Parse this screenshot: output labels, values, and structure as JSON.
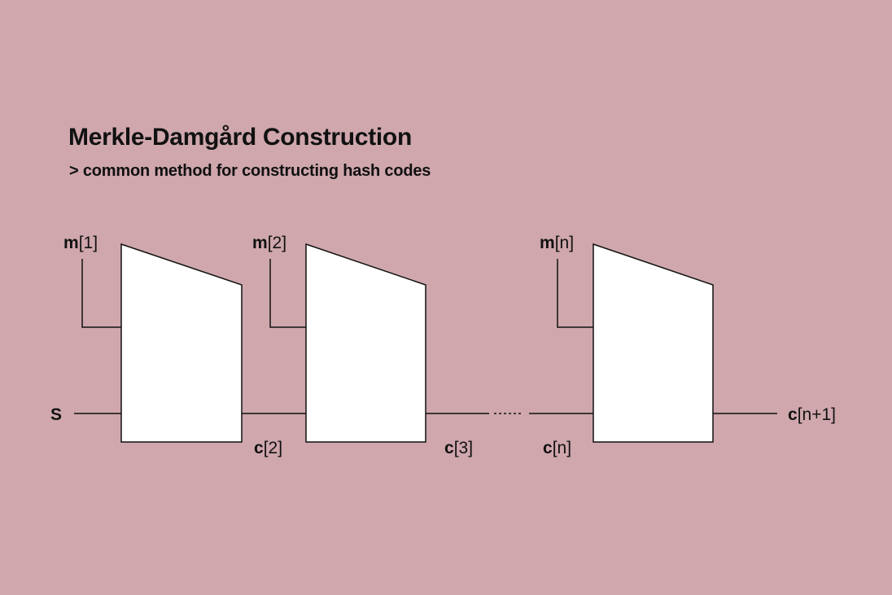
{
  "title": "Merkle-Damgård Construction",
  "subtitle": "> common method for constructing hash codes",
  "initial_label": "S",
  "message_blocks": [
    {
      "var": "m",
      "index": "[1]"
    },
    {
      "var": "m",
      "index": "[2]"
    },
    {
      "var": "m",
      "index": "[n]"
    }
  ],
  "chain_values": [
    {
      "var": "c",
      "index": "[2]"
    },
    {
      "var": "c",
      "index": "[3]"
    },
    {
      "var": "c",
      "index": "[n]"
    }
  ],
  "output_label": {
    "var": "c",
    "index": "[n+1]"
  },
  "colors": {
    "background": "#cfa7ad",
    "box_fill": "#ffffff",
    "stroke": "#111111"
  }
}
